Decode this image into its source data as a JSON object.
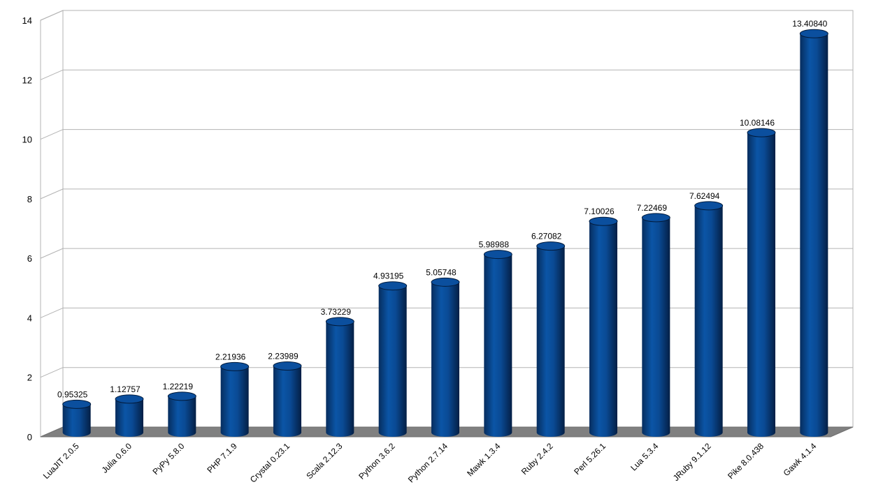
{
  "chart_data": {
    "type": "bar",
    "title": "",
    "xlabel": "",
    "ylabel": "",
    "ylim": [
      0,
      14
    ],
    "yticks": [
      0,
      2,
      4,
      6,
      8,
      10,
      12,
      14
    ],
    "grid": true,
    "legend": "none",
    "bar_color": "#0a4a94",
    "categories": [
      "LuaJIT 2.0.5",
      "Julia 0.6.0",
      "PyPy 5.8.0",
      "PHP 7.1.9",
      "Crystal 0.23.1",
      "Scala 2.12.3",
      "Python 3.6.2",
      "Python 2.7.14",
      "Mawk 1.3.4",
      "Ruby 2.4.2",
      "Perl 5.26.1",
      "Lua 5.3.4",
      "JRuby 9.1.12",
      "Pike 8.0.438",
      "Gawk 4.1.4"
    ],
    "values": [
      0.95325,
      1.12757,
      1.22219,
      2.21936,
      2.23989,
      3.73229,
      4.93195,
      5.05748,
      5.98988,
      6.27082,
      7.10026,
      7.22469,
      7.62494,
      10.08146,
      13.4084
    ],
    "value_labels": [
      "0.95325",
      "1.12757",
      "1.22219",
      "2.21936",
      "2.23989",
      "3.73229",
      "4.93195",
      "5.05748",
      "5.98988",
      "6.27082",
      "7.10026",
      "7.22469",
      "7.62494",
      "10.08146",
      "13.40840"
    ]
  }
}
